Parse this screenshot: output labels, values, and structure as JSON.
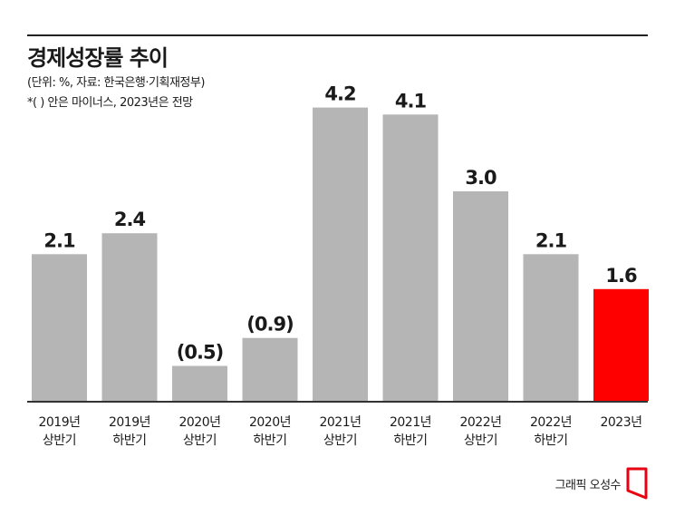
{
  "header": {
    "title": "경제성장률 추이",
    "subtitle": "(단위: %, 자료: 한국은행·기획재정부)",
    "note": "*( ) 안은 마이너스, 2023년은 전망"
  },
  "credit": "그래픽 오성수",
  "colors": {
    "bar": "#b5b5b5",
    "highlight": "#ff0000",
    "axis": "#333333"
  },
  "chart_data": {
    "type": "bar",
    "categories": [
      [
        "2019년",
        "상반기"
      ],
      [
        "2019년",
        "하반기"
      ],
      [
        "2020년",
        "상반기"
      ],
      [
        "2020년",
        "하반기"
      ],
      [
        "2021년",
        "상반기"
      ],
      [
        "2021년",
        "하반기"
      ],
      [
        "2022년",
        "상반기"
      ],
      [
        "2022년",
        "하반기"
      ],
      [
        "2023년",
        ""
      ]
    ],
    "values": [
      2.1,
      2.4,
      -0.5,
      -0.9,
      4.2,
      4.1,
      3.0,
      2.1,
      1.6
    ],
    "labels": [
      "2.1",
      "2.4",
      "(0.5)",
      "(0.9)",
      "4.2",
      "4.1",
      "3.0",
      "2.1",
      "1.6"
    ],
    "highlight_index": 8,
    "grid": false,
    "legend": "none"
  }
}
